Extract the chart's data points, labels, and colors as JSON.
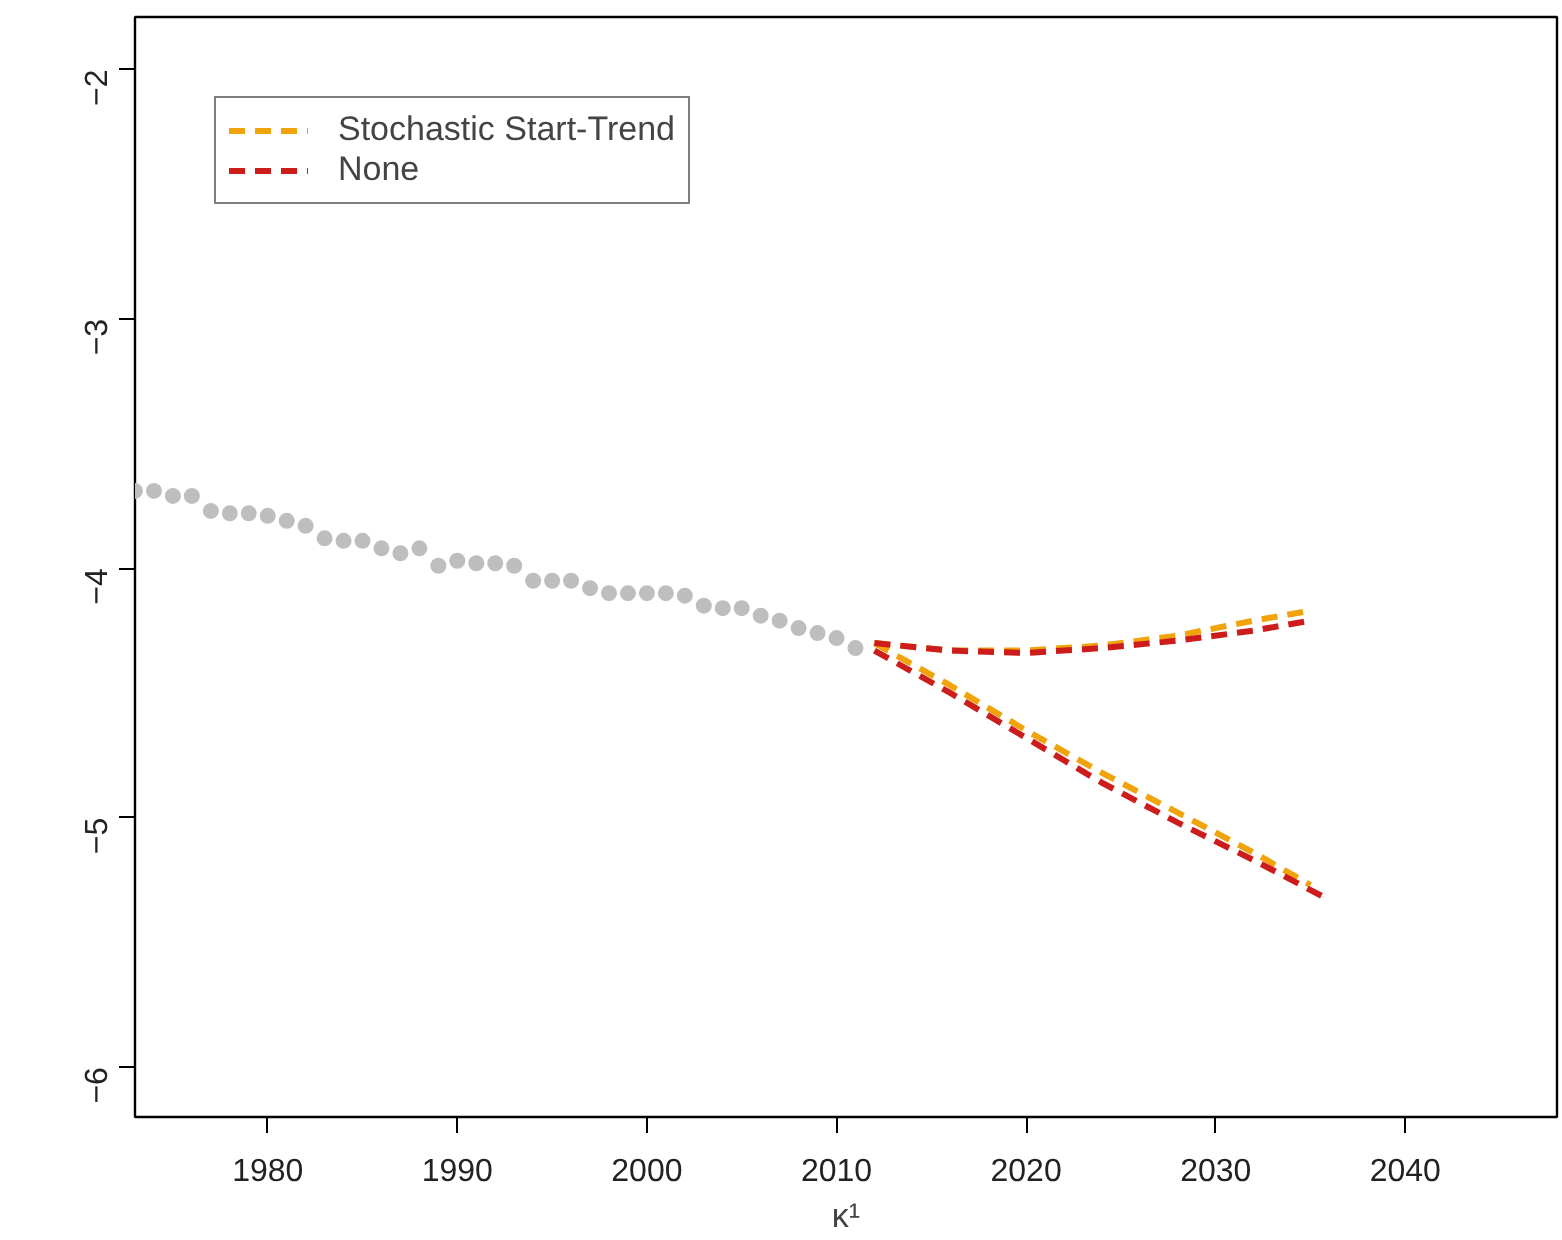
{
  "chart_data": {
    "type": "line",
    "xlabel": "κ¹",
    "xlim": [
      1973,
      2048
    ],
    "ylim": [
      -6.2,
      -1.79
    ],
    "xticks": [
      1980,
      1990,
      2000,
      2010,
      2020,
      2030,
      2040
    ],
    "yticks": [
      -6,
      -5,
      -4,
      -3,
      -2
    ],
    "grid": false,
    "legend": "top left",
    "series": [
      {
        "type": "scatter",
        "marker": "circle",
        "color": "#bebebe",
        "x": [
          1973,
          1974,
          1975,
          1976,
          1977,
          1978,
          1979,
          1980,
          1981,
          1982,
          1983,
          1984,
          1985,
          1986,
          1987,
          1988,
          1989,
          1990,
          1991,
          1992,
          1993,
          1994,
          1995,
          1996,
          1997,
          1998,
          1999,
          2000,
          2001,
          2002,
          2003,
          2004,
          2005,
          2006,
          2007,
          2008,
          2009,
          2010,
          2011
        ],
        "values": [
          -3.69,
          -3.69,
          -3.71,
          -3.71,
          -3.77,
          -3.78,
          -3.78,
          -3.79,
          -3.81,
          -3.83,
          -3.88,
          -3.89,
          -3.89,
          -3.92,
          -3.94,
          -3.92,
          -3.99,
          -3.97,
          -3.98,
          -3.98,
          -3.99,
          -4.05,
          -4.05,
          -4.05,
          -4.08,
          -4.1,
          -4.1,
          -4.1,
          -4.1,
          -4.11,
          -4.15,
          -4.16,
          -4.16,
          -4.19,
          -4.21,
          -4.24,
          -4.26,
          -4.28,
          -4.32
        ]
      },
      {
        "name": "Stochastic Start-Trend",
        "color": "#f0a30a",
        "line_style": "dashed",
        "x": [
          2012,
          2016,
          2020,
          2024,
          2028,
          2032,
          2035
        ],
        "values": [
          -4.3,
          -4.33,
          -4.33,
          -4.31,
          -4.27,
          -4.21,
          -4.17
        ]
      },
      {
        "color": "#f0a30a",
        "line_style": "dashed",
        "x": [
          2012,
          2016,
          2020,
          2024,
          2028,
          2032,
          2035
        ],
        "values": [
          -4.3,
          -4.47,
          -4.65,
          -4.82,
          -4.98,
          -5.14,
          -5.27
        ]
      },
      {
        "name": "None",
        "color": "#cd1c1c",
        "line_style": "dashed",
        "x": [
          2012,
          2016,
          2020,
          2024,
          2028,
          2032,
          2035
        ],
        "values": [
          -4.3,
          -4.33,
          -4.34,
          -4.32,
          -4.29,
          -4.25,
          -4.21
        ]
      },
      {
        "color": "#cd1c1c",
        "line_style": "dashed",
        "x": [
          2012,
          2016,
          2020,
          2024,
          2028,
          2032,
          2036
        ],
        "values": [
          -4.33,
          -4.5,
          -4.68,
          -4.86,
          -5.02,
          -5.17,
          -5.33
        ]
      }
    ]
  }
}
